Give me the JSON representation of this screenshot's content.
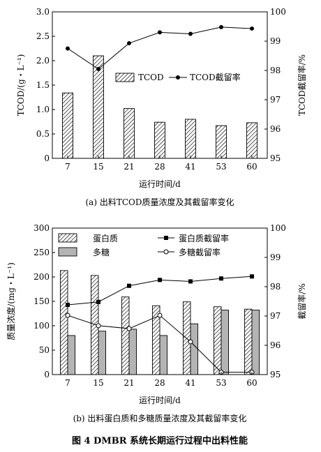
{
  "figure_caption": "图 4 DMBR 系统长期运行过程中出料性能",
  "chart_data": [
    {
      "type": "bar",
      "panel": "a",
      "caption": "(a) 出料TCOD质量浓度及其截留率变化",
      "categories": [
        "7",
        "15",
        "21",
        "28",
        "41",
        "53",
        "60"
      ],
      "xlabel": "运行时间/d",
      "ylabel": "TCOD/(g・L⁻¹)",
      "y2label": "TCOD截留率/%",
      "ylim": [
        0,
        3.0
      ],
      "y2lim": [
        95,
        100
      ],
      "yticks": [
        "0",
        "0.5",
        "1.0",
        "1.5",
        "2.0",
        "2.5",
        "3.0"
      ],
      "y2ticks": [
        "95",
        "96",
        "97",
        "98",
        "99",
        "100"
      ],
      "legend_position": "center-right",
      "series": [
        {
          "name": "TCOD",
          "kind": "bar",
          "pattern": "hatch",
          "axis": "left",
          "values": [
            1.34,
            2.1,
            1.02,
            0.74,
            0.8,
            0.67,
            0.73
          ]
        },
        {
          "name": "TCOD截留率",
          "kind": "line",
          "marker": "filled-circle",
          "axis": "right",
          "values": [
            98.75,
            98.05,
            98.93,
            99.3,
            99.25,
            99.48,
            99.43
          ]
        }
      ]
    },
    {
      "type": "bar",
      "panel": "b",
      "caption": "(b) 出料蛋白质和多糖质量浓度及其截留率变化",
      "categories": [
        "7",
        "15",
        "21",
        "28",
        "41",
        "53",
        "60"
      ],
      "xlabel": "运行时间/d",
      "ylabel": "质量浓度/(mg・L⁻¹)",
      "y2label": "截留率/%",
      "ylim": [
        0,
        300
      ],
      "y2lim": [
        95,
        100
      ],
      "yticks": [
        "0",
        "50",
        "100",
        "150",
        "200",
        "250",
        "300"
      ],
      "y2ticks": [
        "95",
        "96",
        "97",
        "98",
        "99",
        "100"
      ],
      "legend_position": "top",
      "series": [
        {
          "name": "蛋白质",
          "kind": "bar",
          "pattern": "hatch",
          "axis": "left",
          "values": [
            213,
            203,
            159,
            141,
            149,
            139,
            134
          ]
        },
        {
          "name": "多糖",
          "kind": "bar",
          "pattern": "gray",
          "axis": "left",
          "values": [
            80,
            89,
            93,
            80,
            104,
            132,
            132
          ]
        },
        {
          "name": "蛋白质截留率",
          "kind": "line",
          "marker": "filled-square",
          "axis": "right",
          "values": [
            97.38,
            97.48,
            98.03,
            98.23,
            98.18,
            98.28,
            98.35
          ]
        },
        {
          "name": "多糖截留率",
          "kind": "line",
          "marker": "open-circle",
          "axis": "right",
          "values": [
            97.02,
            96.67,
            96.57,
            97.02,
            96.12,
            95.08,
            95.08
          ]
        }
      ]
    }
  ]
}
